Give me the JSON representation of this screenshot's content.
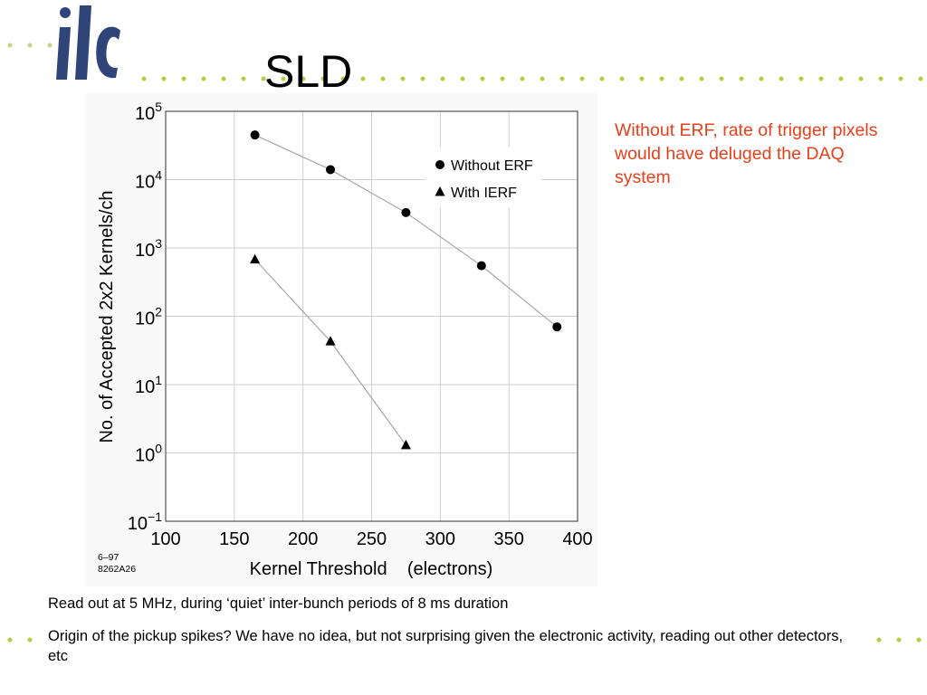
{
  "slide": {
    "title": "SLD",
    "note": "Without ERF, rate of trigger pixels would have deluged the DAQ system",
    "bullets": [
      "Read out at 5 MHz, during ‘quiet’ inter-bunch periods of 8 ms duration",
      "Origin of the pickup spikes? We have no idea, but not surprising given the electronic activity, reading out other detectors, etc"
    ]
  },
  "logo": {
    "icon": "ilc-logo-icon",
    "color": "#2f4479"
  },
  "colors": {
    "accent": "#e8401c",
    "dots": "#b7cc3c",
    "logo": "#2f4479"
  },
  "chart_data": {
    "type": "scatter",
    "xlabel": "Kernel Threshold    (electrons)",
    "ylabel": "No. of Accepted 2x2 Kernels/ch",
    "xlim": [
      100,
      400
    ],
    "ylim": [
      0.1,
      100000
    ],
    "yscale": "log",
    "x_ticks": [
      "100",
      "150",
      "200",
      "250",
      "300",
      "350",
      "400"
    ],
    "y_ticks": [
      {
        "base": "10",
        "exp": "−1"
      },
      {
        "base": "10",
        "exp": "0"
      },
      {
        "base": "10",
        "exp": "1"
      },
      {
        "base": "10",
        "exp": "2"
      },
      {
        "base": "10",
        "exp": "3"
      },
      {
        "base": "10",
        "exp": "4"
      },
      {
        "base": "10",
        "exp": "5"
      }
    ],
    "legend_position": "top-right",
    "grid": true,
    "footnote": [
      "6–97",
      "8262A26"
    ],
    "series": [
      {
        "name": "Without ERF",
        "marker": "circle",
        "x": [
          165,
          220,
          275,
          330,
          385
        ],
        "y": [
          45000,
          14000,
          3300,
          550,
          70
        ]
      },
      {
        "name": "With IERF",
        "marker": "triangle",
        "x": [
          165,
          220,
          275
        ],
        "y": [
          680,
          43,
          1.3
        ]
      }
    ]
  }
}
